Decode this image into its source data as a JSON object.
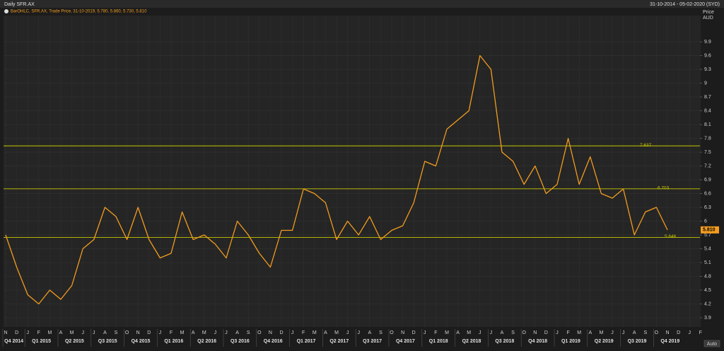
{
  "chart_data": {
    "type": "line",
    "title": "Daily SFR.AX",
    "subtitle": "31-10-2014 - 05-02-2020 (SYD)",
    "legend_text": "BarOHLC, SFR.AX, Trade Price, 31-10-2019, 5.780, 5.860, 5.730, 5.810",
    "ylabel": "Price",
    "yunit": "AUD",
    "button": "Auto",
    "categories": [
      "N",
      "D",
      "J",
      "F",
      "M",
      "A",
      "M",
      "J",
      "J",
      "A",
      "S",
      "O",
      "N",
      "D",
      "J",
      "F",
      "M",
      "A",
      "M",
      "J",
      "J",
      "A",
      "S",
      "O",
      "N",
      "D",
      "J",
      "F",
      "M",
      "A",
      "M",
      "J",
      "J",
      "A",
      "S",
      "O",
      "N",
      "D",
      "J",
      "F",
      "M",
      "A",
      "M",
      "J",
      "J",
      "A",
      "S",
      "O",
      "N",
      "D",
      "J",
      "F",
      "M",
      "A",
      "M",
      "J",
      "J",
      "A",
      "S",
      "O",
      "N",
      "D",
      "J",
      "F"
    ],
    "quarters": [
      "Q4 2014",
      "Q1 2015",
      "Q2 2015",
      "Q3 2015",
      "Q4 2015",
      "Q1 2016",
      "Q2 2016",
      "Q3 2016",
      "Q4 2016",
      "Q1 2017",
      "Q2 2017",
      "Q3 2017",
      "Q4 2017",
      "Q1 2018",
      "Q2 2018",
      "Q3 2018",
      "Q4 2018",
      "Q1 2019",
      "Q2 2019",
      "Q3 2019",
      "Q4 2019"
    ],
    "series": [
      {
        "name": "SFR.AX",
        "color": "#f39c1e",
        "values": [
          5.7,
          5.0,
          4.4,
          4.2,
          4.5,
          4.3,
          4.6,
          5.4,
          5.6,
          6.3,
          6.1,
          5.6,
          6.3,
          5.6,
          5.2,
          5.3,
          6.2,
          5.6,
          5.7,
          5.5,
          5.2,
          6.0,
          5.7,
          5.3,
          5.0,
          5.8,
          5.8,
          6.7,
          6.6,
          6.4,
          5.6,
          6.0,
          5.7,
          6.1,
          5.6,
          5.8,
          5.9,
          6.4,
          7.3,
          7.2,
          8.0,
          8.2,
          8.4,
          9.6,
          9.3,
          7.5,
          7.3,
          6.8,
          7.2,
          6.6,
          6.8,
          7.8,
          6.8,
          7.4,
          6.6,
          6.5,
          6.7,
          5.7,
          6.2,
          6.3,
          5.81,
          null,
          null,
          null
        ]
      }
    ],
    "levels": [
      7.637,
      6.703,
      5.646
    ],
    "level_color": "#c8c800",
    "last_price": {
      "value": 5.81,
      "label": "5.810"
    },
    "ylim": [
      3.7,
      10.47
    ],
    "yticks": [
      3.9,
      4.2,
      4.5,
      4.8,
      5.1,
      5.4,
      5.7,
      6,
      6.3,
      6.6,
      6.9,
      7.2,
      7.5,
      7.8,
      8.1,
      8.4,
      8.7,
      9,
      9.3,
      9.6,
      9.9
    ],
    "grid": true
  }
}
